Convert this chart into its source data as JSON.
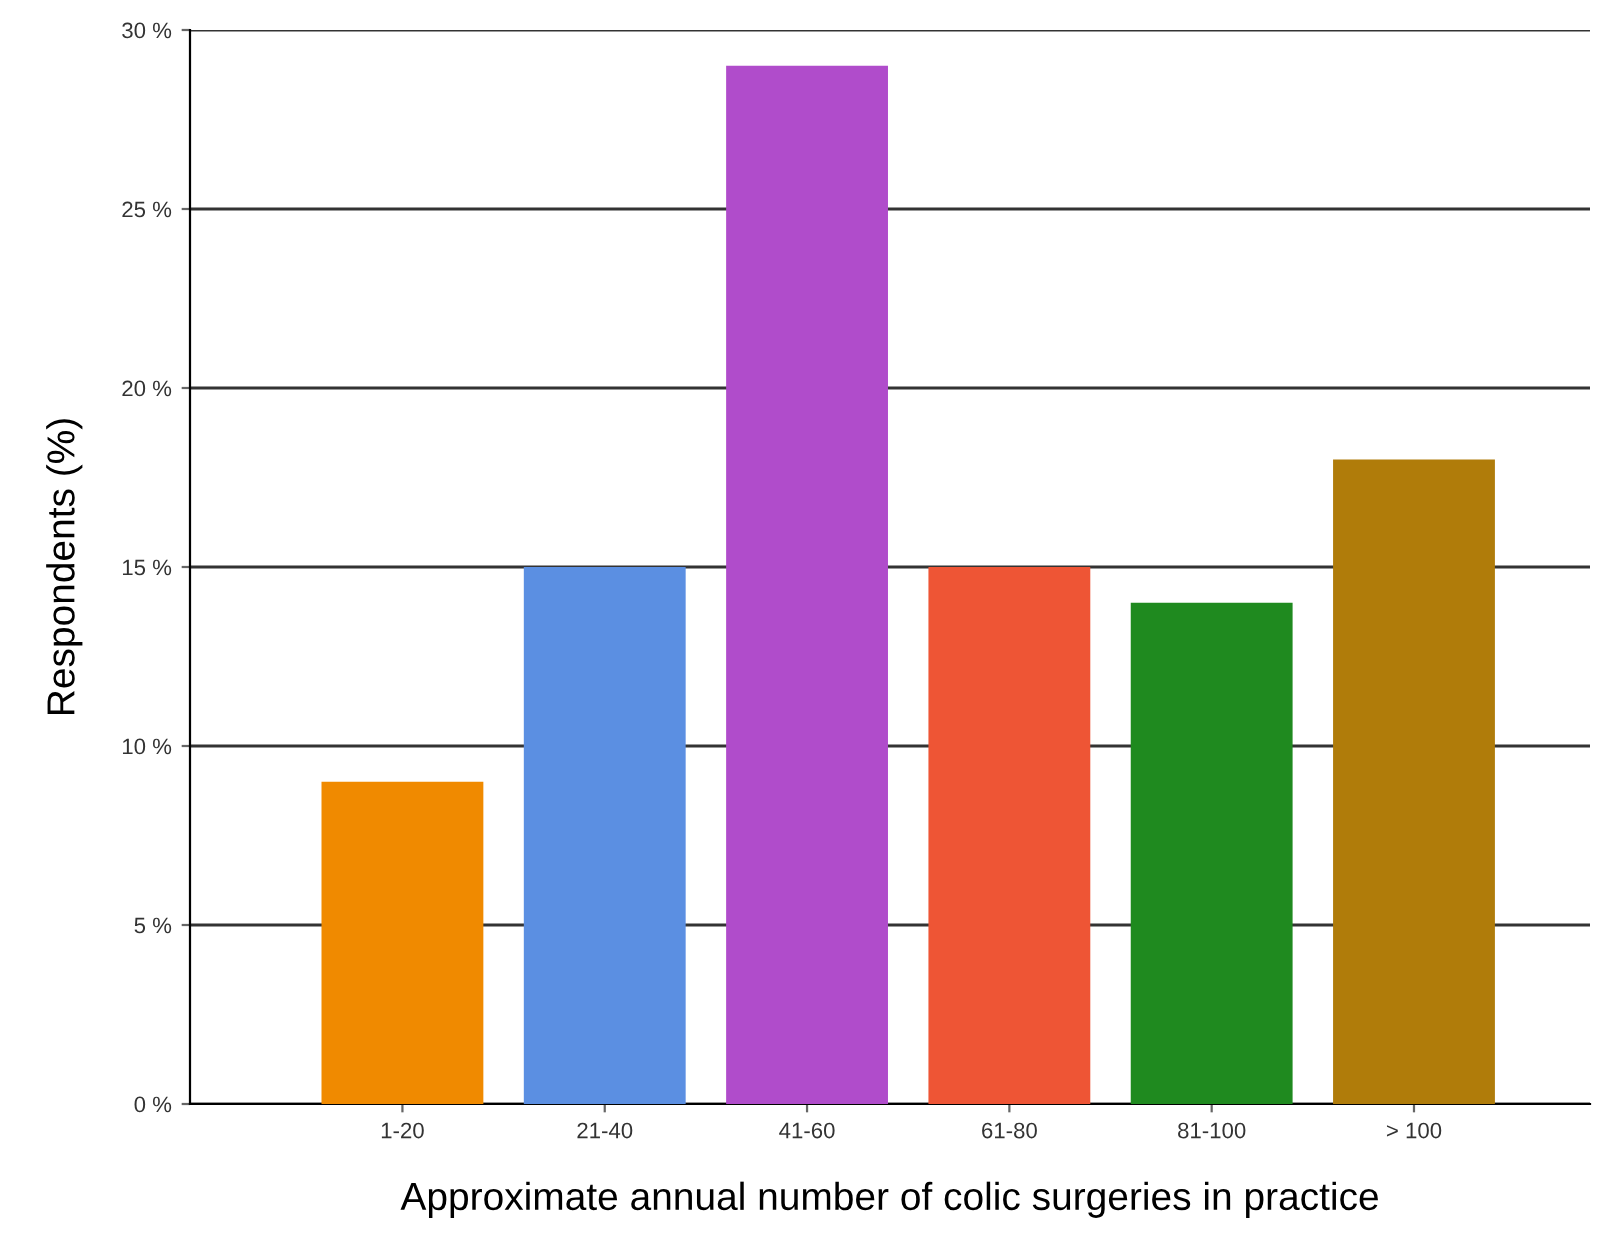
{
  "chart_data": {
    "type": "bar",
    "xlabel": "Approximate annual number of colic surgeries in practice",
    "ylabel": "Respondents (%)",
    "categories": [
      "1-20",
      "21-40",
      "41-60",
      "61-80",
      "81-100",
      "> 100"
    ],
    "values": [
      9,
      15,
      29,
      15,
      14,
      18
    ],
    "colors": [
      "#f08a00",
      "#5b8fe2",
      "#b04ccb",
      "#ee5535",
      "#1f8a1f",
      "#b07c0a"
    ],
    "ylim": [
      0,
      30
    ],
    "yticks": [
      {
        "value": 0,
        "label": "0 %"
      },
      {
        "value": 5,
        "label": "5 %"
      },
      {
        "value": 10,
        "label": "10 %"
      },
      {
        "value": 15,
        "label": "15 %"
      },
      {
        "value": 20,
        "label": "20 %"
      },
      {
        "value": 25,
        "label": "25 %"
      },
      {
        "value": 30,
        "label": "30 %"
      }
    ],
    "grid": "y",
    "legend": false
  }
}
